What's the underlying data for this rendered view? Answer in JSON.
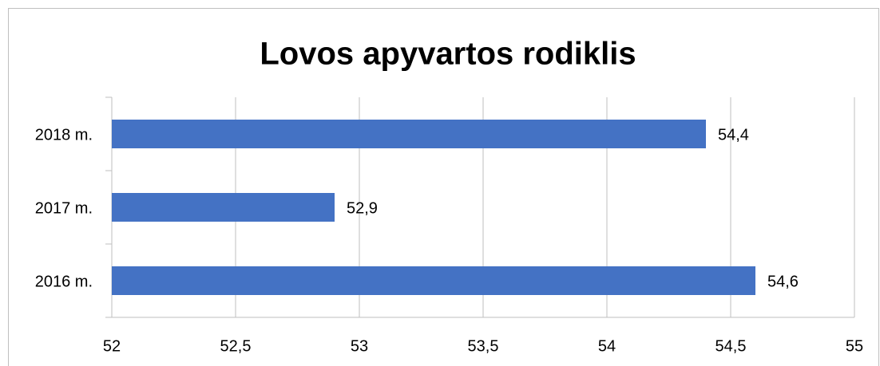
{
  "chart_data": {
    "type": "barh",
    "title": "Lovos apyvartos rodiklis",
    "categories": [
      "2018 m.",
      "2017 m.",
      "2016 m."
    ],
    "values": [
      54.4,
      52.9,
      54.6
    ],
    "value_labels": [
      "54,4",
      "52,9",
      "54,6"
    ],
    "color": "#4472c4",
    "xlim": [
      52,
      55
    ],
    "xticks": [
      52,
      {
        "value": 52.5,
        "label": "52,5"
      },
      53,
      {
        "value": 53.5,
        "label": "53,5"
      },
      54,
      {
        "value": 54.5,
        "label": "54,5"
      },
      55
    ],
    "grid": true
  }
}
